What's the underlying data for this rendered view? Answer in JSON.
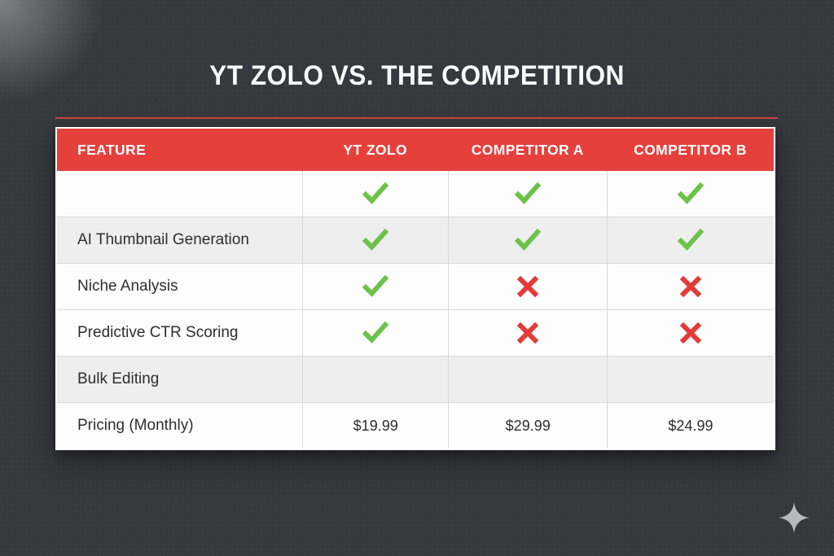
{
  "title": "YT ZOLO VS. THE COMPETITION",
  "colors": {
    "background": "#35383d",
    "header_red": "#e6403d",
    "divider_red": "#d14340",
    "check_green": "#6cc24a",
    "cross_red": "#e23b38",
    "row_gray": "#eeeeee",
    "row_white": "#fdfdfd",
    "title_text": "#fafafa"
  },
  "table": {
    "headers": [
      "FEATURE",
      "YT ZOLO",
      "COMPETITOR A",
      "COMPETITOR B"
    ],
    "rows": [
      {
        "feature": "",
        "values": [
          "check",
          "check",
          "check"
        ],
        "shade": "white"
      },
      {
        "feature": "AI Thumbnail Generation",
        "values": [
          "check",
          "check",
          "check"
        ],
        "shade": "gray"
      },
      {
        "feature": "Niche Analysis",
        "values": [
          "check",
          "cross",
          "cross"
        ],
        "shade": "white"
      },
      {
        "feature": "Predictive CTR Scoring",
        "values": [
          "check",
          "cross",
          "cross"
        ],
        "shade": "white"
      },
      {
        "feature": "Bulk Editing",
        "values": [
          "",
          "",
          ""
        ],
        "shade": "gray"
      },
      {
        "feature": "Pricing (Monthly)",
        "values": [
          "$19.99",
          "$29.99",
          "$24.99"
        ],
        "shade": "white"
      }
    ]
  },
  "icons": {
    "check": "check-icon",
    "cross": "cross-icon",
    "sparkle": "sparkle-icon"
  },
  "chart_data": {
    "type": "table",
    "title": "YT ZOLO VS. THE COMPETITION",
    "columns": [
      "FEATURE",
      "YT ZOLO",
      "COMPETITOR A",
      "COMPETITOR B"
    ],
    "rows": [
      [
        "",
        "yes",
        "yes",
        "yes"
      ],
      [
        "AI Thumbnail Generation",
        "yes",
        "yes",
        "yes"
      ],
      [
        "Niche Analysis",
        "yes",
        "no",
        "no"
      ],
      [
        "Predictive CTR Scoring",
        "yes",
        "no",
        "no"
      ],
      [
        "Bulk Editing",
        "",
        "",
        ""
      ],
      [
        "Pricing (Monthly)",
        "$19.99",
        "$29.99",
        "$24.99"
      ]
    ],
    "legend_position": "none",
    "grid": true
  }
}
